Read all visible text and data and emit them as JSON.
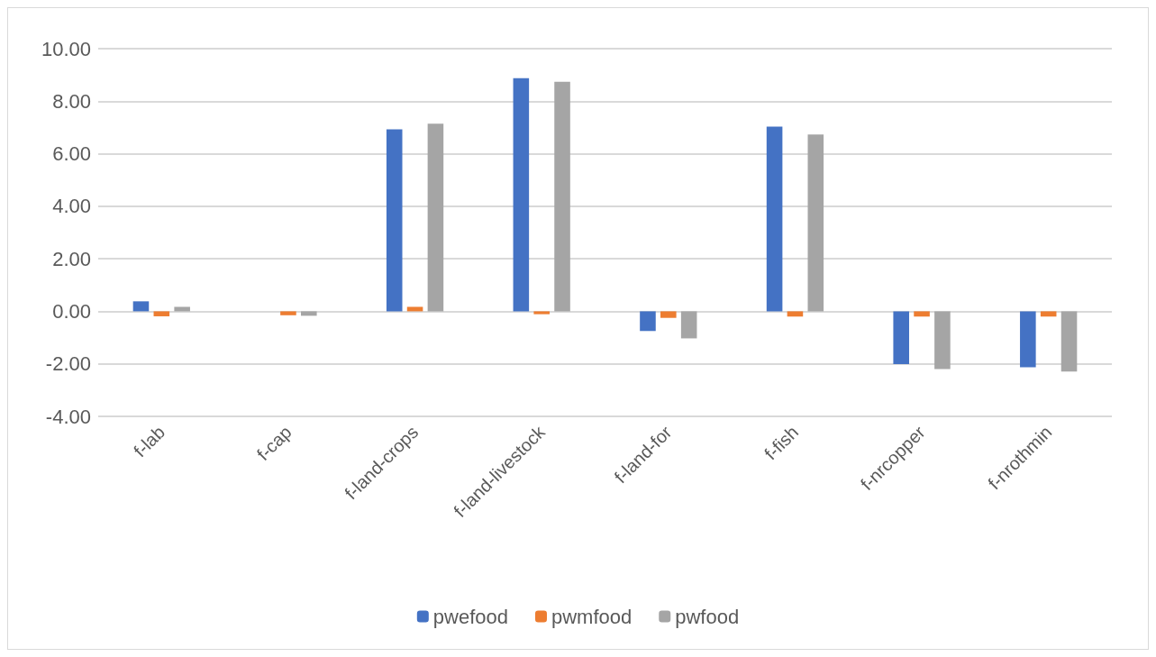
{
  "chart_data": {
    "type": "bar",
    "categories": [
      "f-lab",
      "f-cap",
      "f-land-crops",
      "f-land-livestock",
      "f-land-for",
      "f-fish",
      "f-nrcopper",
      "f-nrothmin"
    ],
    "series": [
      {
        "name": "pwefood",
        "color": "#4472c4",
        "values": [
          0.38,
          0,
          6.93,
          8.88,
          -0.75,
          7.03,
          -2.01,
          -2.13
        ]
      },
      {
        "name": "pwmfood",
        "color": "#ed7d31",
        "values": [
          -0.19,
          -0.15,
          0.17,
          -0.11,
          -0.25,
          -0.2,
          -0.2,
          -0.2
        ]
      },
      {
        "name": "pwfood",
        "color": "#a5a5a5",
        "values": [
          0.17,
          -0.17,
          7.14,
          8.74,
          -1.03,
          6.73,
          -2.2,
          -2.29
        ]
      }
    ],
    "ylim": [
      -4,
      10
    ],
    "yticks": [
      {
        "value": -4,
        "label": "-4.00"
      },
      {
        "value": -2,
        "label": "-2.00"
      },
      {
        "value": 0,
        "label": "0.00"
      },
      {
        "value": 2,
        "label": "2.00"
      },
      {
        "value": 4,
        "label": "4.00"
      },
      {
        "value": 6,
        "label": "6.00"
      },
      {
        "value": 8,
        "label": "8.00"
      },
      {
        "value": 10,
        "label": "10.00"
      }
    ],
    "grid": "y",
    "legend": "bottom"
  }
}
